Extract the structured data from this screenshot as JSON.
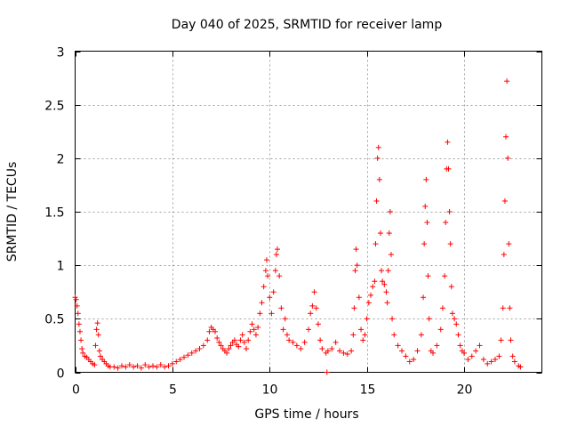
{
  "chart_data": {
    "type": "scatter",
    "title": "Day 040 of 2025, SRMTID for receiver lamp",
    "xlabel": "GPS time / hours",
    "ylabel": "SRMTID / TECUs",
    "xlim": [
      0,
      24
    ],
    "ylim": [
      0,
      3
    ],
    "xticks": [
      "0",
      "5",
      "10",
      "15",
      "20"
    ],
    "xtick_values": [
      0,
      5,
      10,
      15,
      20
    ],
    "yticks": [
      "0",
      "0.5",
      "1",
      "1.5",
      "2",
      "2.5",
      "3"
    ],
    "ytick_values": [
      0,
      0.5,
      1,
      1.5,
      2,
      2.5,
      3
    ],
    "grid": true,
    "marker": "+",
    "color": "#ff0000",
    "series": [
      {
        "name": "SRMTID",
        "points": [
          [
            0.0,
            0.7
          ],
          [
            0.05,
            0.68
          ],
          [
            0.1,
            0.62
          ],
          [
            0.15,
            0.55
          ],
          [
            0.2,
            0.45
          ],
          [
            0.25,
            0.38
          ],
          [
            0.3,
            0.3
          ],
          [
            0.35,
            0.22
          ],
          [
            0.4,
            0.18
          ],
          [
            0.5,
            0.15
          ],
          [
            0.6,
            0.14
          ],
          [
            0.7,
            0.12
          ],
          [
            0.8,
            0.1
          ],
          [
            0.9,
            0.08
          ],
          [
            1.0,
            0.07
          ],
          [
            1.05,
            0.25
          ],
          [
            1.1,
            0.4
          ],
          [
            1.15,
            0.46
          ],
          [
            1.2,
            0.35
          ],
          [
            1.25,
            0.2
          ],
          [
            1.3,
            0.15
          ],
          [
            1.4,
            0.12
          ],
          [
            1.5,
            0.1
          ],
          [
            1.6,
            0.08
          ],
          [
            1.7,
            0.06
          ],
          [
            1.8,
            0.05
          ],
          [
            2.0,
            0.05
          ],
          [
            2.2,
            0.04
          ],
          [
            2.4,
            0.06
          ],
          [
            2.6,
            0.05
          ],
          [
            2.8,
            0.07
          ],
          [
            3.0,
            0.05
          ],
          [
            3.2,
            0.06
          ],
          [
            3.4,
            0.04
          ],
          [
            3.6,
            0.07
          ],
          [
            3.8,
            0.05
          ],
          [
            4.0,
            0.06
          ],
          [
            4.2,
            0.05
          ],
          [
            4.4,
            0.07
          ],
          [
            4.6,
            0.05
          ],
          [
            4.8,
            0.06
          ],
          [
            5.0,
            0.08
          ],
          [
            5.2,
            0.1
          ],
          [
            5.4,
            0.12
          ],
          [
            5.6,
            0.14
          ],
          [
            5.8,
            0.16
          ],
          [
            6.0,
            0.18
          ],
          [
            6.2,
            0.2
          ],
          [
            6.4,
            0.22
          ],
          [
            6.6,
            0.25
          ],
          [
            6.8,
            0.3
          ],
          [
            6.9,
            0.38
          ],
          [
            7.0,
            0.42
          ],
          [
            7.1,
            0.4
          ],
          [
            7.2,
            0.38
          ],
          [
            7.3,
            0.32
          ],
          [
            7.4,
            0.28
          ],
          [
            7.5,
            0.25
          ],
          [
            7.6,
            0.22
          ],
          [
            7.7,
            0.2
          ],
          [
            7.8,
            0.18
          ],
          [
            7.9,
            0.22
          ],
          [
            8.0,
            0.25
          ],
          [
            8.1,
            0.28
          ],
          [
            8.2,
            0.3
          ],
          [
            8.3,
            0.26
          ],
          [
            8.4,
            0.24
          ],
          [
            8.5,
            0.3
          ],
          [
            8.6,
            0.35
          ],
          [
            8.7,
            0.28
          ],
          [
            8.8,
            0.22
          ],
          [
            8.9,
            0.3
          ],
          [
            9.0,
            0.38
          ],
          [
            9.1,
            0.45
          ],
          [
            9.2,
            0.4
          ],
          [
            9.3,
            0.35
          ],
          [
            9.4,
            0.42
          ],
          [
            9.5,
            0.55
          ],
          [
            9.6,
            0.65
          ],
          [
            9.7,
            0.8
          ],
          [
            9.8,
            0.95
          ],
          [
            9.85,
            1.05
          ],
          [
            9.9,
            0.9
          ],
          [
            10.0,
            0.7
          ],
          [
            10.1,
            0.55
          ],
          [
            10.2,
            0.75
          ],
          [
            10.3,
            0.95
          ],
          [
            10.35,
            1.1
          ],
          [
            10.4,
            1.15
          ],
          [
            10.5,
            0.9
          ],
          [
            10.6,
            0.6
          ],
          [
            10.7,
            0.4
          ],
          [
            10.8,
            0.5
          ],
          [
            10.9,
            0.35
          ],
          [
            11.0,
            0.3
          ],
          [
            11.2,
            0.28
          ],
          [
            11.4,
            0.25
          ],
          [
            11.6,
            0.22
          ],
          [
            11.8,
            0.28
          ],
          [
            12.0,
            0.4
          ],
          [
            12.1,
            0.55
          ],
          [
            12.2,
            0.62
          ],
          [
            12.3,
            0.75
          ],
          [
            12.4,
            0.6
          ],
          [
            12.5,
            0.45
          ],
          [
            12.6,
            0.3
          ],
          [
            12.7,
            0.22
          ],
          [
            12.9,
            0.18
          ],
          [
            12.95,
            0.0
          ],
          [
            13.0,
            0.2
          ],
          [
            13.2,
            0.22
          ],
          [
            13.4,
            0.28
          ],
          [
            13.6,
            0.2
          ],
          [
            13.8,
            0.18
          ],
          [
            14.0,
            0.17
          ],
          [
            14.2,
            0.2
          ],
          [
            14.3,
            0.35
          ],
          [
            14.35,
            0.6
          ],
          [
            14.4,
            0.95
          ],
          [
            14.45,
            1.15
          ],
          [
            14.5,
            1.0
          ],
          [
            14.6,
            0.7
          ],
          [
            14.7,
            0.4
          ],
          [
            14.8,
            0.3
          ],
          [
            14.9,
            0.35
          ],
          [
            15.0,
            0.5
          ],
          [
            15.1,
            0.65
          ],
          [
            15.2,
            0.72
          ],
          [
            15.3,
            0.8
          ],
          [
            15.4,
            0.85
          ],
          [
            15.45,
            1.2
          ],
          [
            15.5,
            1.6
          ],
          [
            15.55,
            2.0
          ],
          [
            15.6,
            2.1
          ],
          [
            15.65,
            1.8
          ],
          [
            15.7,
            1.3
          ],
          [
            15.75,
            0.95
          ],
          [
            15.8,
            0.85
          ],
          [
            15.9,
            0.82
          ],
          [
            16.0,
            0.75
          ],
          [
            16.05,
            0.65
          ],
          [
            16.1,
            0.95
          ],
          [
            16.15,
            1.3
          ],
          [
            16.2,
            1.5
          ],
          [
            16.25,
            1.1
          ],
          [
            16.3,
            0.5
          ],
          [
            16.4,
            0.35
          ],
          [
            16.6,
            0.25
          ],
          [
            16.8,
            0.2
          ],
          [
            17.0,
            0.15
          ],
          [
            17.2,
            0.1
          ],
          [
            17.4,
            0.12
          ],
          [
            17.6,
            0.2
          ],
          [
            17.8,
            0.35
          ],
          [
            17.9,
            0.7
          ],
          [
            17.95,
            1.2
          ],
          [
            18.0,
            1.55
          ],
          [
            18.05,
            1.8
          ],
          [
            18.1,
            1.4
          ],
          [
            18.15,
            0.9
          ],
          [
            18.2,
            0.5
          ],
          [
            18.3,
            0.2
          ],
          [
            18.4,
            0.18
          ],
          [
            18.6,
            0.25
          ],
          [
            18.8,
            0.4
          ],
          [
            18.9,
            0.6
          ],
          [
            19.0,
            0.9
          ],
          [
            19.05,
            1.4
          ],
          [
            19.1,
            1.9
          ],
          [
            19.15,
            2.15
          ],
          [
            19.2,
            1.9
          ],
          [
            19.25,
            1.5
          ],
          [
            19.3,
            1.2
          ],
          [
            19.35,
            0.8
          ],
          [
            19.4,
            0.55
          ],
          [
            19.5,
            0.5
          ],
          [
            19.6,
            0.45
          ],
          [
            19.7,
            0.35
          ],
          [
            19.8,
            0.25
          ],
          [
            19.9,
            0.2
          ],
          [
            20.0,
            0.18
          ],
          [
            20.2,
            0.12
          ],
          [
            20.4,
            0.15
          ],
          [
            20.6,
            0.2
          ],
          [
            20.8,
            0.25
          ],
          [
            21.0,
            0.12
          ],
          [
            21.2,
            0.08
          ],
          [
            21.4,
            0.1
          ],
          [
            21.6,
            0.12
          ],
          [
            21.8,
            0.15
          ],
          [
            21.9,
            0.3
          ],
          [
            22.0,
            0.6
          ],
          [
            22.05,
            1.1
          ],
          [
            22.1,
            1.6
          ],
          [
            22.15,
            2.2
          ],
          [
            22.2,
            2.72
          ],
          [
            22.25,
            2.0
          ],
          [
            22.3,
            1.2
          ],
          [
            22.35,
            0.6
          ],
          [
            22.4,
            0.3
          ],
          [
            22.5,
            0.15
          ],
          [
            22.6,
            0.1
          ],
          [
            22.8,
            0.06
          ],
          [
            22.9,
            0.05
          ]
        ]
      }
    ]
  }
}
